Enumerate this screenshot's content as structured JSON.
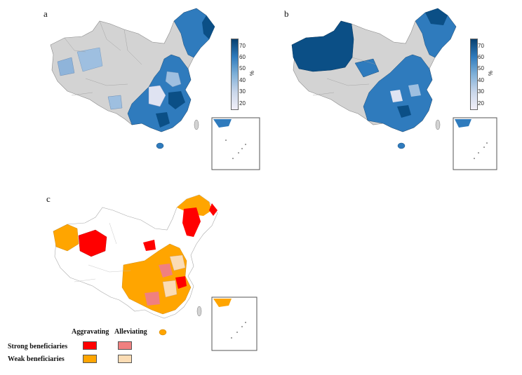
{
  "panels": {
    "a": {
      "label": "a",
      "colorbar_ticks": [
        "70",
        "60",
        "50",
        "40",
        "30",
        "20"
      ],
      "unit": "%"
    },
    "b": {
      "label": "b",
      "colorbar_ticks": [
        "70",
        "60",
        "50",
        "40",
        "30",
        "20"
      ],
      "unit": "%"
    },
    "c": {
      "label": "c"
    }
  },
  "legend": {
    "col_aggravating": "Aggravating",
    "col_alleviating": "Alleviating",
    "row_strong": "Strong beneficiaries",
    "row_weak": "Weak beneficiaries",
    "colors": {
      "strong_aggravating": "#ff0000",
      "strong_alleviating": "#f08080",
      "weak_aggravating": "#ffa500",
      "weak_alleviating": "#fbdcb4"
    }
  },
  "colors": {
    "no_data": "#d3d3d3",
    "blue_dark": "#0b4f86",
    "blue_mid": "#2f7bbd",
    "blue_light": "#9ebfe0",
    "blue_pale": "#dfe3f2"
  }
}
